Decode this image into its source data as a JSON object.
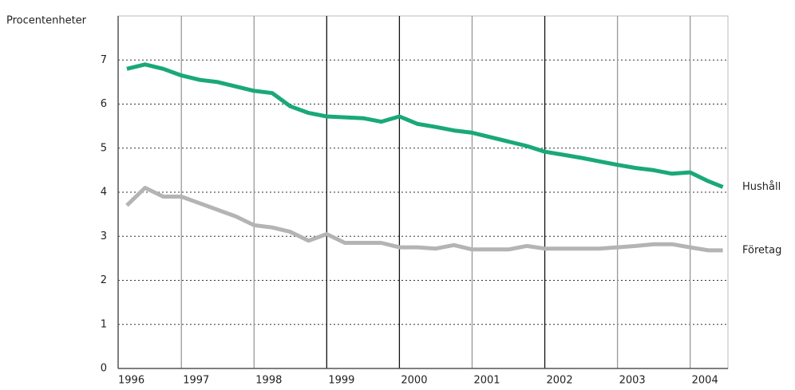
{
  "chart_data": {
    "type": "line",
    "y_label": "Procentenheter",
    "x": [
      1996.25,
      1996.5,
      1996.75,
      1997.0,
      1997.25,
      1997.5,
      1997.75,
      1998.0,
      1998.25,
      1998.5,
      1998.75,
      1999.0,
      1999.25,
      1999.5,
      1999.75,
      2000.0,
      2000.25,
      2000.5,
      2000.75,
      2001.0,
      2001.25,
      2001.5,
      2001.75,
      2002.0,
      2002.25,
      2002.5,
      2002.75,
      2003.0,
      2003.25,
      2003.5,
      2003.75,
      2004.0,
      2004.25,
      2004.45
    ],
    "series": [
      {
        "name": "Hushåll",
        "color": "#1aa87a",
        "values": [
          6.8,
          6.9,
          6.8,
          6.65,
          6.55,
          6.5,
          6.4,
          6.3,
          6.25,
          5.95,
          5.8,
          5.72,
          5.7,
          5.68,
          5.6,
          5.72,
          5.55,
          5.48,
          5.4,
          5.35,
          5.25,
          5.15,
          5.05,
          4.92,
          4.85,
          4.78,
          4.7,
          4.62,
          4.55,
          4.5,
          4.42,
          4.45,
          4.25,
          4.12
        ]
      },
      {
        "name": "Företag",
        "color": "#b4b4b4",
        "values": [
          3.7,
          4.1,
          3.9,
          3.9,
          3.75,
          3.6,
          3.45,
          3.25,
          3.2,
          3.1,
          2.9,
          3.05,
          2.85,
          2.85,
          2.85,
          2.75,
          2.75,
          2.72,
          2.8,
          2.7,
          2.7,
          2.7,
          2.78,
          2.72,
          2.72,
          2.72,
          2.72,
          2.75,
          2.78,
          2.82,
          2.82,
          2.75,
          2.68,
          2.68
        ]
      }
    ],
    "xlim": [
      1996.13,
      2004.52
    ],
    "xticks": [
      {
        "value": 1996,
        "label": "1996"
      },
      {
        "value": 1997,
        "label": "1997"
      },
      {
        "value": 1998,
        "label": "1998"
      },
      {
        "value": 1999,
        "label": "1999"
      },
      {
        "value": 2000,
        "label": "2000"
      },
      {
        "value": 2001,
        "label": "2001"
      },
      {
        "value": 2002,
        "label": "2002"
      },
      {
        "value": 2003,
        "label": "2003"
      },
      {
        "value": 2004,
        "label": "2004"
      }
    ],
    "vline_colors": [
      "#999999",
      "#999999",
      "#999999",
      "#111111",
      "#111111",
      "#999999",
      "#111111",
      "#999999",
      "#999999"
    ],
    "ylim": [
      0,
      8
    ],
    "yticks": [
      0,
      1,
      2,
      3,
      4,
      5,
      6,
      7
    ],
    "grid": true
  }
}
